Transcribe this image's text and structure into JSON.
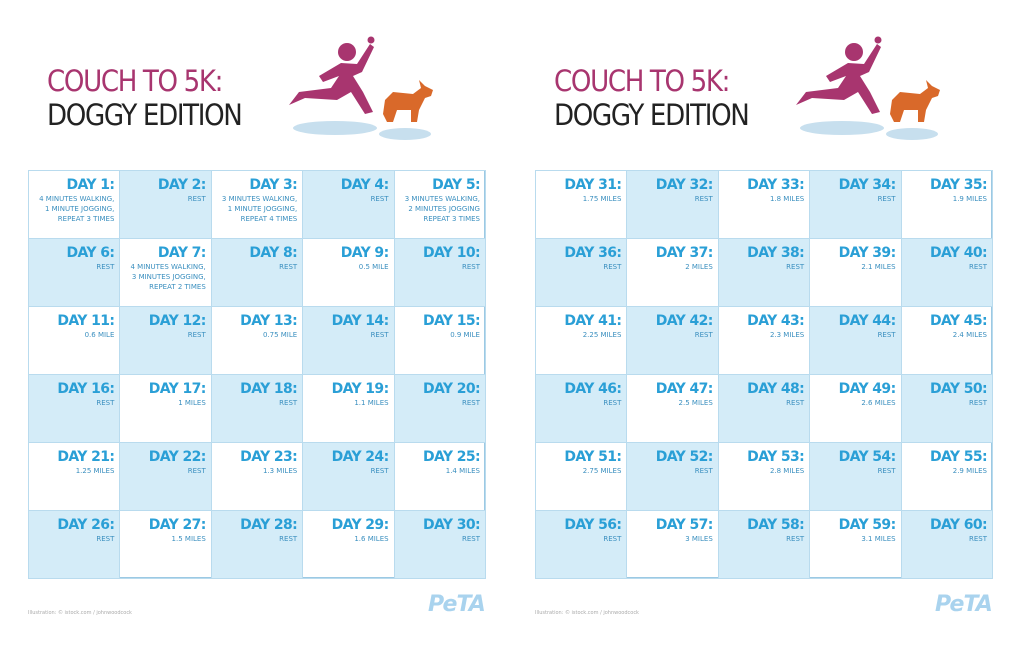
{
  "pages": [
    {
      "title_line1": "COUCH TO 5K:",
      "title_line2": "DOGGY EDITION",
      "footer_credit": "Illustration: © istock.com / johnwoodcock",
      "logo": "PeTA",
      "days": [
        {
          "label": "DAY 1:",
          "lines": [
            "4 MINUTES WALKING,",
            "1 MINUTE JOGGING,",
            "REPEAT 3 TIMES"
          ]
        },
        {
          "label": "DAY 2:",
          "lines": [
            "REST"
          ]
        },
        {
          "label": "DAY 3:",
          "lines": [
            "3 MINUTES WALKING,",
            "1 MINUTE JOGGING,",
            "REPEAT 4 TIMES"
          ]
        },
        {
          "label": "DAY 4:",
          "lines": [
            "REST"
          ]
        },
        {
          "label": "DAY 5:",
          "lines": [
            "3 MINUTES WALKING,",
            "2 MINUTES JOGGING",
            "REPEAT 3 TIMES"
          ]
        },
        {
          "label": "DAY 6:",
          "lines": [
            "REST"
          ]
        },
        {
          "label": "DAY 7:",
          "lines": [
            "4 MINUTES WALKING,",
            "3 MINUTES JOGGING,",
            "REPEAT 2 TIMES"
          ]
        },
        {
          "label": "DAY 8:",
          "lines": [
            "REST"
          ]
        },
        {
          "label": "DAY 9:",
          "lines": [
            "0.5 MILE"
          ]
        },
        {
          "label": "DAY 10:",
          "lines": [
            "REST"
          ]
        },
        {
          "label": "DAY 11:",
          "lines": [
            "0.6 MILE"
          ]
        },
        {
          "label": "DAY 12:",
          "lines": [
            "REST"
          ]
        },
        {
          "label": "DAY 13:",
          "lines": [
            "0.75 MILE"
          ]
        },
        {
          "label": "DAY 14:",
          "lines": [
            "REST"
          ]
        },
        {
          "label": "DAY 15:",
          "lines": [
            "0.9 MILE"
          ]
        },
        {
          "label": "DAY 16:",
          "lines": [
            "REST"
          ]
        },
        {
          "label": "DAY 17:",
          "lines": [
            "1 MILES"
          ]
        },
        {
          "label": "DAY 18:",
          "lines": [
            "REST"
          ]
        },
        {
          "label": "DAY 19:",
          "lines": [
            "1.1 MILES"
          ]
        },
        {
          "label": "DAY 20:",
          "lines": [
            "REST"
          ]
        },
        {
          "label": "DAY 21:",
          "lines": [
            "1.25 MILES"
          ]
        },
        {
          "label": "DAY 22:",
          "lines": [
            "REST"
          ]
        },
        {
          "label": "DAY 23:",
          "lines": [
            "1.3 MILES"
          ]
        },
        {
          "label": "DAY 24:",
          "lines": [
            "REST"
          ]
        },
        {
          "label": "DAY 25:",
          "lines": [
            "1.4 MILES"
          ]
        },
        {
          "label": "DAY 26:",
          "lines": [
            "REST"
          ]
        },
        {
          "label": "DAY 27:",
          "lines": [
            "1.5 MILES"
          ]
        },
        {
          "label": "DAY 28:",
          "lines": [
            "REST"
          ]
        },
        {
          "label": "DAY 29:",
          "lines": [
            "1.6 MILES"
          ]
        },
        {
          "label": "DAY 30:",
          "lines": [
            "REST"
          ]
        }
      ]
    },
    {
      "title_line1": "COUCH TO 5K:",
      "title_line2": "DOGGY EDITION",
      "footer_credit": "Illustration: © istock.com / johnwoodcock",
      "logo": "PeTA",
      "days": [
        {
          "label": "DAY 31:",
          "lines": [
            "1.75 MILES"
          ]
        },
        {
          "label": "DAY 32:",
          "lines": [
            "REST"
          ]
        },
        {
          "label": "DAY 33:",
          "lines": [
            "1.8 MILES"
          ]
        },
        {
          "label": "DAY 34:",
          "lines": [
            "REST"
          ]
        },
        {
          "label": "DAY 35:",
          "lines": [
            "1.9 MILES"
          ]
        },
        {
          "label": "DAY 36:",
          "lines": [
            "REST"
          ]
        },
        {
          "label": "DAY 37:",
          "lines": [
            "2 MILES"
          ]
        },
        {
          "label": "DAY 38:",
          "lines": [
            "REST"
          ]
        },
        {
          "label": "DAY 39:",
          "lines": [
            "2.1 MILES"
          ]
        },
        {
          "label": "DAY 40:",
          "lines": [
            "REST"
          ]
        },
        {
          "label": "DAY 41:",
          "lines": [
            "2.25 MILES"
          ]
        },
        {
          "label": "DAY 42:",
          "lines": [
            "REST"
          ]
        },
        {
          "label": "DAY 43:",
          "lines": [
            "2.3 MILES"
          ]
        },
        {
          "label": "DAY 44:",
          "lines": [
            "REST"
          ]
        },
        {
          "label": "DAY 45:",
          "lines": [
            "2.4 MILES"
          ]
        },
        {
          "label": "DAY 46:",
          "lines": [
            "REST"
          ]
        },
        {
          "label": "DAY 47:",
          "lines": [
            "2.5 MILES"
          ]
        },
        {
          "label": "DAY 48:",
          "lines": [
            "REST"
          ]
        },
        {
          "label": "DAY 49:",
          "lines": [
            "2.6 MILES"
          ]
        },
        {
          "label": "DAY 50:",
          "lines": [
            "REST"
          ]
        },
        {
          "label": "DAY 51:",
          "lines": [
            "2.75 MILES"
          ]
        },
        {
          "label": "DAY 52:",
          "lines": [
            "REST"
          ]
        },
        {
          "label": "DAY 53:",
          "lines": [
            "2.8 MILES"
          ]
        },
        {
          "label": "DAY 54:",
          "lines": [
            "REST"
          ]
        },
        {
          "label": "DAY 55:",
          "lines": [
            "2.9 MILES"
          ]
        },
        {
          "label": "DAY 56:",
          "lines": [
            "REST"
          ]
        },
        {
          "label": "DAY 57:",
          "lines": [
            "3 MILES"
          ]
        },
        {
          "label": "DAY 58:",
          "lines": [
            "REST"
          ]
        },
        {
          "label": "DAY 59:",
          "lines": [
            "3.1 MILES"
          ]
        },
        {
          "label": "DAY 60:",
          "lines": [
            "REST"
          ]
        }
      ]
    }
  ]
}
